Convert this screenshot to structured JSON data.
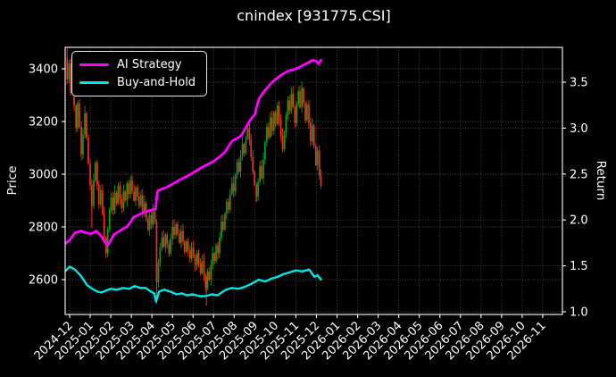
{
  "title": "cnindex [931775.CSI]",
  "colors": {
    "background": "#000000",
    "foreground": "#ffffff",
    "grid": "#4a4a4a",
    "ai_strategy": "#ff00ff",
    "buy_and_hold": "#00e5e5",
    "candle_up": "#0fa018",
    "candle_down": "#f92c20"
  },
  "legend": {
    "items": [
      {
        "label": "AI Strategy",
        "color": "#ff00ff"
      },
      {
        "label": "Buy-and-Hold",
        "color": "#00e5e5"
      }
    ]
  },
  "axes": {
    "x": {
      "labels": [
        "2024-12",
        "2025-01",
        "2025-02",
        "2025-03",
        "2025-04",
        "2025-05",
        "2025-06",
        "2025-07",
        "2025-08",
        "2025-09",
        "2025-10",
        "2025-11",
        "2025-12",
        "2026-01",
        "2026-02",
        "2026-03",
        "2026-04",
        "2026-05",
        "2026-06",
        "2026-07",
        "2026-08",
        "2026-09",
        "2026-10",
        "2026-11"
      ]
    },
    "price": {
      "label": "Price",
      "ticks": [
        2600,
        2800,
        3000,
        3200,
        3400
      ]
    },
    "return": {
      "label": "Return",
      "ticks": [
        1.0,
        1.5,
        2.0,
        2.5,
        3.0,
        3.5
      ]
    }
  },
  "chart_data": {
    "type": "candlestick+line",
    "title": "cnindex [931775.CSI]",
    "x_unit": "months since 2024-12 (tick index 0 = 2024-12)",
    "x_axis_span_months": 24,
    "data_ends_at_month": 12.22,
    "price_axis_range_shown": [
      2600,
      3400
    ],
    "return_axis_range_shown": [
      1.0,
      3.5
    ],
    "grid": "dotted both axes",
    "legend_position": "upper left",
    "series": [
      {
        "name": "AI Strategy",
        "axis": "return",
        "color": "#ff00ff",
        "points": [
          [
            -0.22,
            1.74
          ],
          [
            0,
            1.78
          ],
          [
            0.25,
            1.86
          ],
          [
            0.55,
            1.88
          ],
          [
            0.8,
            1.86
          ],
          [
            1.05,
            1.85
          ],
          [
            1.3,
            1.88
          ],
          [
            1.55,
            1.82
          ],
          [
            1.7,
            1.76
          ],
          [
            1.87,
            1.73
          ],
          [
            2.0,
            1.78
          ],
          [
            2.15,
            1.84
          ],
          [
            2.5,
            1.89
          ],
          [
            2.8,
            1.93
          ],
          [
            3.0,
            1.99
          ],
          [
            3.1,
            2.03
          ],
          [
            3.4,
            2.06
          ],
          [
            3.7,
            2.09
          ],
          [
            4.0,
            2.11
          ],
          [
            4.18,
            2.12
          ],
          [
            4.26,
            2.3
          ],
          [
            4.3,
            2.32
          ],
          [
            4.65,
            2.35
          ],
          [
            5.0,
            2.39
          ],
          [
            5.3,
            2.43
          ],
          [
            5.65,
            2.47
          ],
          [
            6.05,
            2.52
          ],
          [
            6.4,
            2.57
          ],
          [
            6.75,
            2.61
          ],
          [
            7.0,
            2.64
          ],
          [
            7.25,
            2.68
          ],
          [
            7.55,
            2.74
          ],
          [
            7.9,
            2.86
          ],
          [
            8.15,
            2.89
          ],
          [
            8.35,
            2.92
          ],
          [
            8.55,
            3.0
          ],
          [
            8.75,
            3.08
          ],
          [
            9.0,
            3.15
          ],
          [
            9.2,
            3.32
          ],
          [
            9.45,
            3.4
          ],
          [
            9.65,
            3.45
          ],
          [
            9.85,
            3.5
          ],
          [
            10.05,
            3.54
          ],
          [
            10.3,
            3.58
          ],
          [
            10.6,
            3.62
          ],
          [
            11.05,
            3.65
          ],
          [
            11.4,
            3.69
          ],
          [
            11.8,
            3.74
          ],
          [
            12.0,
            3.73
          ],
          [
            12.1,
            3.7
          ],
          [
            12.22,
            3.74
          ]
        ]
      },
      {
        "name": "Buy-and-Hold",
        "axis": "return",
        "color": "#00e5e5",
        "points": [
          [
            -0.22,
            1.44
          ],
          [
            0.0,
            1.49
          ],
          [
            0.25,
            1.46
          ],
          [
            0.55,
            1.39
          ],
          [
            0.85,
            1.29
          ],
          [
            1.1,
            1.25
          ],
          [
            1.35,
            1.22
          ],
          [
            1.55,
            1.21
          ],
          [
            1.75,
            1.23
          ],
          [
            2.0,
            1.25
          ],
          [
            2.3,
            1.24
          ],
          [
            2.6,
            1.26
          ],
          [
            2.9,
            1.25
          ],
          [
            3.15,
            1.28
          ],
          [
            3.45,
            1.26
          ],
          [
            3.7,
            1.26
          ],
          [
            3.95,
            1.22
          ],
          [
            4.12,
            1.2
          ],
          [
            4.2,
            1.11
          ],
          [
            4.35,
            1.22
          ],
          [
            4.6,
            1.24
          ],
          [
            4.9,
            1.22
          ],
          [
            5.2,
            1.19
          ],
          [
            5.45,
            1.2
          ],
          [
            5.7,
            1.18
          ],
          [
            6.0,
            1.19
          ],
          [
            6.3,
            1.17
          ],
          [
            6.6,
            1.17
          ],
          [
            6.9,
            1.19
          ],
          [
            7.2,
            1.18
          ],
          [
            7.6,
            1.24
          ],
          [
            7.9,
            1.26
          ],
          [
            8.2,
            1.25
          ],
          [
            8.5,
            1.27
          ],
          [
            8.8,
            1.3
          ],
          [
            9.2,
            1.35
          ],
          [
            9.5,
            1.33
          ],
          [
            9.8,
            1.36
          ],
          [
            10.1,
            1.38
          ],
          [
            10.4,
            1.41
          ],
          [
            10.7,
            1.43
          ],
          [
            11.0,
            1.45
          ],
          [
            11.3,
            1.44
          ],
          [
            11.65,
            1.46
          ],
          [
            11.9,
            1.38
          ],
          [
            12.05,
            1.4
          ],
          [
            12.22,
            1.35
          ]
        ]
      },
      {
        "name": "cnindex candlesticks",
        "axis": "price",
        "up_color": "#0fa018",
        "down_color": "#f92c20",
        "closes": [
          [
            -0.2,
            3435
          ],
          [
            -0.12,
            3360
          ],
          [
            -0.03,
            3420
          ],
          [
            0.05,
            3310
          ],
          [
            0.14,
            3365
          ],
          [
            0.22,
            3260
          ],
          [
            0.31,
            3175
          ],
          [
            0.39,
            3270
          ],
          [
            0.48,
            3180
          ],
          [
            0.57,
            3075
          ],
          [
            0.65,
            3150
          ],
          [
            0.74,
            3230
          ],
          [
            0.82,
            3140
          ],
          [
            0.91,
            3040
          ],
          [
            1.0,
            2960
          ],
          [
            1.08,
            2880
          ],
          [
            1.17,
            2975
          ],
          [
            1.25,
            3045
          ],
          [
            1.34,
            2960
          ],
          [
            1.42,
            2885
          ],
          [
            1.51,
            2940
          ],
          [
            1.6,
            2850
          ],
          [
            1.68,
            2760
          ],
          [
            1.77,
            2700
          ],
          [
            1.85,
            2790
          ],
          [
            1.94,
            2860
          ],
          [
            2.02,
            2910
          ],
          [
            2.11,
            2865
          ],
          [
            2.19,
            2930
          ],
          [
            2.28,
            2890
          ],
          [
            2.36,
            2955
          ],
          [
            2.45,
            2905
          ],
          [
            2.53,
            2870
          ],
          [
            2.62,
            2935
          ],
          [
            2.7,
            2900
          ],
          [
            2.79,
            2965
          ],
          [
            2.87,
            2925
          ],
          [
            2.96,
            2975
          ],
          [
            3.04,
            2935
          ],
          [
            3.13,
            2900
          ],
          [
            3.21,
            2950
          ],
          [
            3.3,
            2915
          ],
          [
            3.38,
            2880
          ],
          [
            3.47,
            2920
          ],
          [
            3.55,
            2855
          ],
          [
            3.64,
            2890
          ],
          [
            3.72,
            2830
          ],
          [
            3.81,
            2790
          ],
          [
            3.89,
            2845
          ],
          [
            3.98,
            2810
          ],
          [
            4.06,
            2860
          ],
          [
            4.15,
            2820
          ],
          [
            4.23,
            2590
          ],
          [
            4.32,
            2665
          ],
          [
            4.4,
            2720
          ],
          [
            4.49,
            2760
          ],
          [
            4.57,
            2725
          ],
          [
            4.66,
            2770
          ],
          [
            4.74,
            2735
          ],
          [
            4.83,
            2700
          ],
          [
            4.91,
            2755
          ],
          [
            5.0,
            2800
          ],
          [
            5.08,
            2770
          ],
          [
            5.17,
            2810
          ],
          [
            5.25,
            2775
          ],
          [
            5.34,
            2740
          ],
          [
            5.42,
            2785
          ],
          [
            5.51,
            2745
          ],
          [
            5.59,
            2705
          ],
          [
            5.68,
            2745
          ],
          [
            5.76,
            2710
          ],
          [
            5.85,
            2680
          ],
          [
            5.93,
            2720
          ],
          [
            6.02,
            2690
          ],
          [
            6.1,
            2655
          ],
          [
            6.19,
            2700
          ],
          [
            6.27,
            2660
          ],
          [
            6.36,
            2625
          ],
          [
            6.44,
            2670
          ],
          [
            6.53,
            2615
          ],
          [
            6.61,
            2570
          ],
          [
            6.7,
            2630
          ],
          [
            6.78,
            2600
          ],
          [
            6.87,
            2655
          ],
          [
            6.95,
            2700
          ],
          [
            7.04,
            2670
          ],
          [
            7.12,
            2730
          ],
          [
            7.21,
            2700
          ],
          [
            7.29,
            2760
          ],
          [
            7.38,
            2820
          ],
          [
            7.46,
            2790
          ],
          [
            7.55,
            2850
          ],
          [
            7.63,
            2895
          ],
          [
            7.72,
            2865
          ],
          [
            7.8,
            2925
          ],
          [
            7.89,
            2965
          ],
          [
            7.97,
            2935
          ],
          [
            8.06,
            2995
          ],
          [
            8.14,
            3045
          ],
          [
            8.23,
            3010
          ],
          [
            8.31,
            3070
          ],
          [
            8.4,
            3115
          ],
          [
            8.48,
            3080
          ],
          [
            8.57,
            3135
          ],
          [
            8.65,
            3175
          ],
          [
            8.74,
            3130
          ],
          [
            8.82,
            3065
          ],
          [
            8.91,
            3010
          ],
          [
            8.99,
            2960
          ],
          [
            9.08,
            2915
          ],
          [
            9.16,
            2970
          ],
          [
            9.25,
            3030
          ],
          [
            9.33,
            2985
          ],
          [
            9.42,
            3055
          ],
          [
            9.5,
            3120
          ],
          [
            9.59,
            3180
          ],
          [
            9.67,
            3140
          ],
          [
            9.76,
            3215
          ],
          [
            9.84,
            3165
          ],
          [
            9.93,
            3235
          ],
          [
            10.01,
            3190
          ],
          [
            10.1,
            3260
          ],
          [
            10.18,
            3205
          ],
          [
            10.27,
            3145
          ],
          [
            10.35,
            3095
          ],
          [
            10.44,
            3160
          ],
          [
            10.52,
            3225
          ],
          [
            10.61,
            3280
          ],
          [
            10.69,
            3240
          ],
          [
            10.78,
            3305
          ],
          [
            10.86,
            3255
          ],
          [
            10.95,
            3195
          ],
          [
            11.03,
            3265
          ],
          [
            11.12,
            3315
          ],
          [
            11.2,
            3255
          ],
          [
            11.29,
            3325
          ],
          [
            11.37,
            3270
          ],
          [
            11.46,
            3205
          ],
          [
            11.54,
            3265
          ],
          [
            11.63,
            3195
          ],
          [
            11.71,
            3125
          ],
          [
            11.8,
            3185
          ],
          [
            11.88,
            3105
          ],
          [
            11.97,
            3035
          ],
          [
            12.05,
            3090
          ],
          [
            12.14,
            2995
          ],
          [
            12.22,
            2955
          ]
        ],
        "long_wicks": [
          {
            "m": -0.12,
            "a": 3360,
            "b": 3478
          },
          {
            "m": 1.08,
            "a": 2880,
            "b": 2795
          },
          {
            "m": 4.23,
            "a": 2700,
            "b": 2508
          },
          {
            "m": 6.65,
            "a": 2610,
            "b": 2502
          },
          {
            "m": 9.08,
            "a": 2950,
            "b": 2895
          }
        ]
      }
    ]
  }
}
